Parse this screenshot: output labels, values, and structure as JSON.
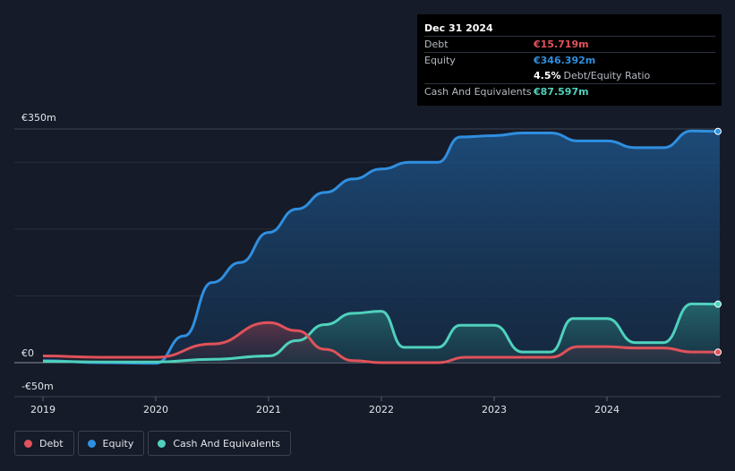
{
  "chart_data": {
    "type": "area",
    "title": "",
    "xlabel": "",
    "ylabel": "",
    "ylim": [
      -50,
      350
    ],
    "y_tick_labels": [
      "€350m",
      "€0",
      "-€50m"
    ],
    "x_tick_labels": [
      "2019",
      "2020",
      "2021",
      "2022",
      "2023",
      "2024"
    ],
    "grid": true,
    "series": [
      {
        "name": "Equity",
        "color": "#2f8fe0",
        "points": [
          [
            2019.0,
            3
          ],
          [
            2019.5,
            0
          ],
          [
            2020.0,
            -1
          ],
          [
            2020.25,
            40
          ],
          [
            2020.5,
            120
          ],
          [
            2020.75,
            150
          ],
          [
            2021.0,
            195
          ],
          [
            2021.25,
            230
          ],
          [
            2021.5,
            255
          ],
          [
            2021.75,
            275
          ],
          [
            2022.0,
            290
          ],
          [
            2022.25,
            300
          ],
          [
            2022.5,
            300
          ],
          [
            2022.7,
            338
          ],
          [
            2023.0,
            340
          ],
          [
            2023.25,
            344
          ],
          [
            2023.5,
            344
          ],
          [
            2023.75,
            332
          ],
          [
            2024.0,
            332
          ],
          [
            2024.25,
            322
          ],
          [
            2024.5,
            322
          ],
          [
            2024.75,
            347
          ],
          [
            2025.0,
            346.392
          ]
        ]
      },
      {
        "name": "Cash And Equivalents",
        "color": "#4fd1bd",
        "points": [
          [
            2019.0,
            2
          ],
          [
            2019.5,
            1
          ],
          [
            2020.0,
            1
          ],
          [
            2020.5,
            5
          ],
          [
            2021.0,
            10
          ],
          [
            2021.25,
            33
          ],
          [
            2021.5,
            57
          ],
          [
            2021.75,
            74
          ],
          [
            2022.0,
            77
          ],
          [
            2022.2,
            23
          ],
          [
            2022.5,
            23
          ],
          [
            2022.7,
            56
          ],
          [
            2023.0,
            56
          ],
          [
            2023.25,
            16
          ],
          [
            2023.5,
            16
          ],
          [
            2023.7,
            66
          ],
          [
            2024.0,
            66
          ],
          [
            2024.25,
            30
          ],
          [
            2024.5,
            30
          ],
          [
            2024.75,
            88
          ],
          [
            2025.0,
            87.597
          ]
        ]
      },
      {
        "name": "Debt",
        "color": "#e0525a",
        "points": [
          [
            2019.0,
            10
          ],
          [
            2019.5,
            8
          ],
          [
            2020.0,
            8
          ],
          [
            2020.5,
            28
          ],
          [
            2021.0,
            60
          ],
          [
            2021.25,
            48
          ],
          [
            2021.5,
            20
          ],
          [
            2021.75,
            3
          ],
          [
            2022.0,
            0
          ],
          [
            2022.5,
            0
          ],
          [
            2022.75,
            8
          ],
          [
            2023.0,
            8
          ],
          [
            2023.5,
            8
          ],
          [
            2023.75,
            24
          ],
          [
            2024.0,
            24
          ],
          [
            2024.25,
            22
          ],
          [
            2024.5,
            22
          ],
          [
            2024.75,
            16
          ],
          [
            2025.0,
            15.719
          ]
        ]
      }
    ]
  },
  "tooltip": {
    "date": "Dec 31 2024",
    "debt_label": "Debt",
    "debt_value": "€15.719m",
    "equity_label": "Equity",
    "equity_value": "€346.392m",
    "ratio_value": "4.5%",
    "ratio_label": "Debt/Equity Ratio",
    "cash_label": "Cash And Equivalents",
    "cash_value": "€87.597m"
  },
  "legend": [
    {
      "label": "Debt",
      "color": "#e0525a"
    },
    {
      "label": "Equity",
      "color": "#2f8fe0"
    },
    {
      "label": "Cash And Equivalents",
      "color": "#4fd1bd"
    }
  ],
  "colors": {
    "debt": "#e0525a",
    "equity": "#2f8fe0",
    "cash": "#4fd1bd",
    "background": "#151b28"
  }
}
